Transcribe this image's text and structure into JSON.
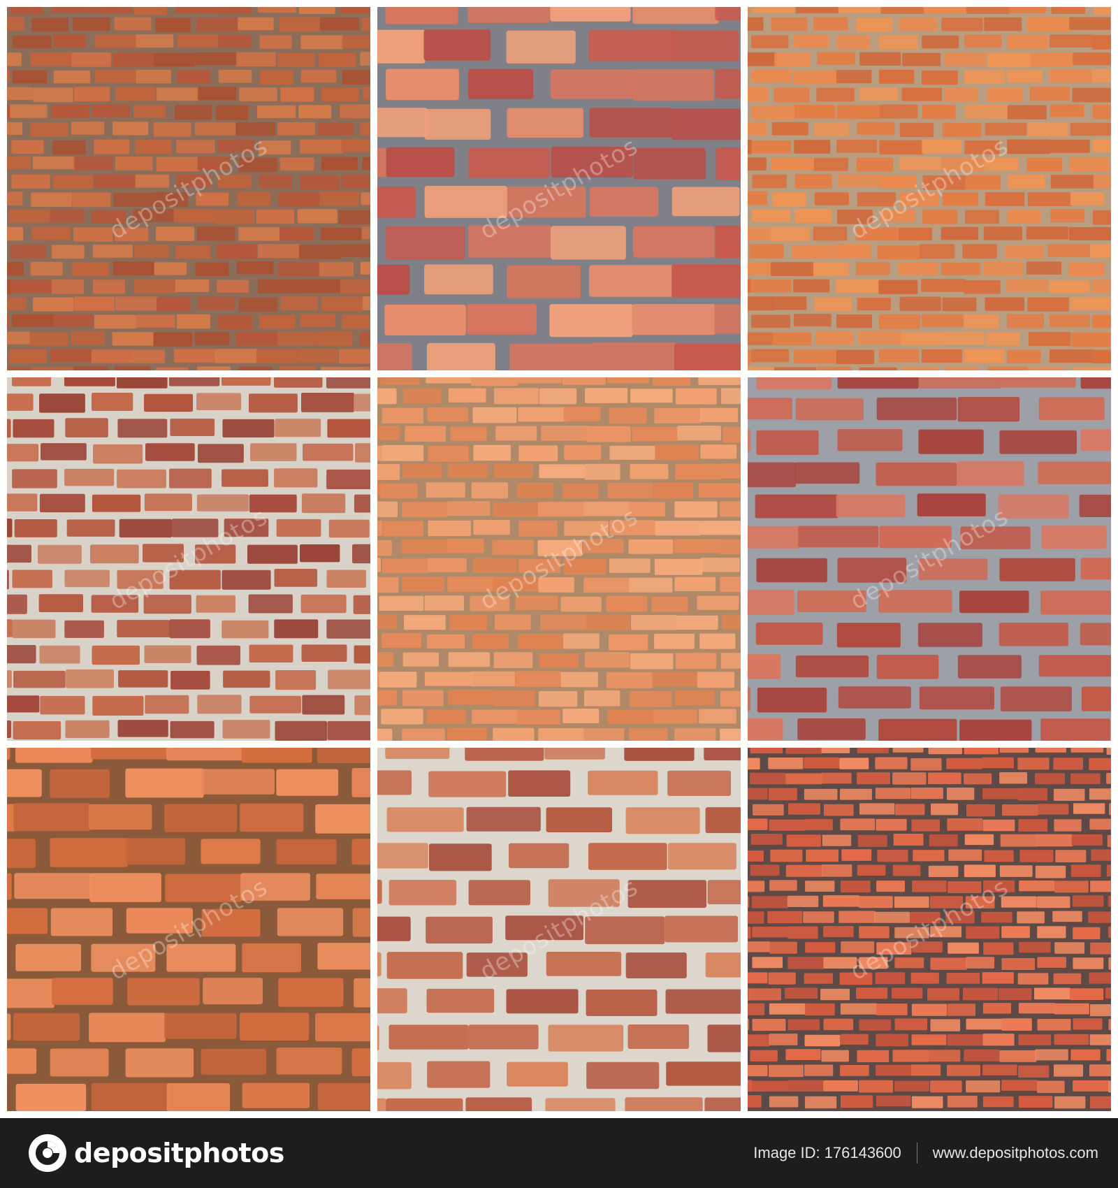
{
  "watermark_text": "depositphotos",
  "tiles": [
    {
      "name": "tile-small-red-orange-bricks",
      "mortar": "#8c6d5a",
      "colors": [
        "#c2643c",
        "#d37a4a",
        "#b5573a",
        "#cf7045",
        "#a95133"
      ]
    },
    {
      "name": "tile-large-salmon-bricks-gray-mortar",
      "mortar": "#7f8088",
      "colors": [
        "#d9765f",
        "#e88d6c",
        "#c95a4f",
        "#f0a07a",
        "#b9504a"
      ]
    },
    {
      "name": "tile-orange-bricks-light-mortar",
      "mortar": "#b99d80",
      "colors": [
        "#e47d44",
        "#ea8a4f",
        "#d96f3d",
        "#ee9556",
        "#cf6a3c"
      ]
    },
    {
      "name": "tile-weathered-brick-white-mortar",
      "mortar": "#d8d2c8",
      "colors": [
        "#b4553d",
        "#c56a4b",
        "#a4483a",
        "#c97e5f",
        "#9a4538"
      ]
    },
    {
      "name": "tile-pale-orange-bricks",
      "mortar": "#b08a68",
      "colors": [
        "#ec9566",
        "#f2a172",
        "#e58a5a",
        "#f5aa7c",
        "#e08352"
      ]
    },
    {
      "name": "tile-red-bricks-rough-gray-mortar",
      "mortar": "#9ea0a8",
      "colors": [
        "#c25a4a",
        "#d06a55",
        "#b04a40",
        "#d97763",
        "#a8453f"
      ]
    },
    {
      "name": "tile-close-up-orange-bricks",
      "mortar": "#8a5a3a",
      "colors": [
        "#e07a4a",
        "#ea8858",
        "#d66e40",
        "#f09060",
        "#c8663d"
      ]
    },
    {
      "name": "tile-rustic-bricks-white-mortar",
      "mortar": "#dcd6cc",
      "colors": [
        "#c46a4c",
        "#b65a42",
        "#cf7a5a",
        "#a9503e",
        "#d8865f"
      ]
    },
    {
      "name": "tile-dense-red-bricks-dark-mortar",
      "mortar": "#5d4a47",
      "colors": [
        "#e56a48",
        "#ec7a55",
        "#d65c40",
        "#f08a62",
        "#c9553e"
      ]
    }
  ],
  "footer": {
    "logo_text": "depositphotos",
    "image_id_label": "Image ID:",
    "image_id": "176143600",
    "site_url": "www.depositphotos.com"
  }
}
